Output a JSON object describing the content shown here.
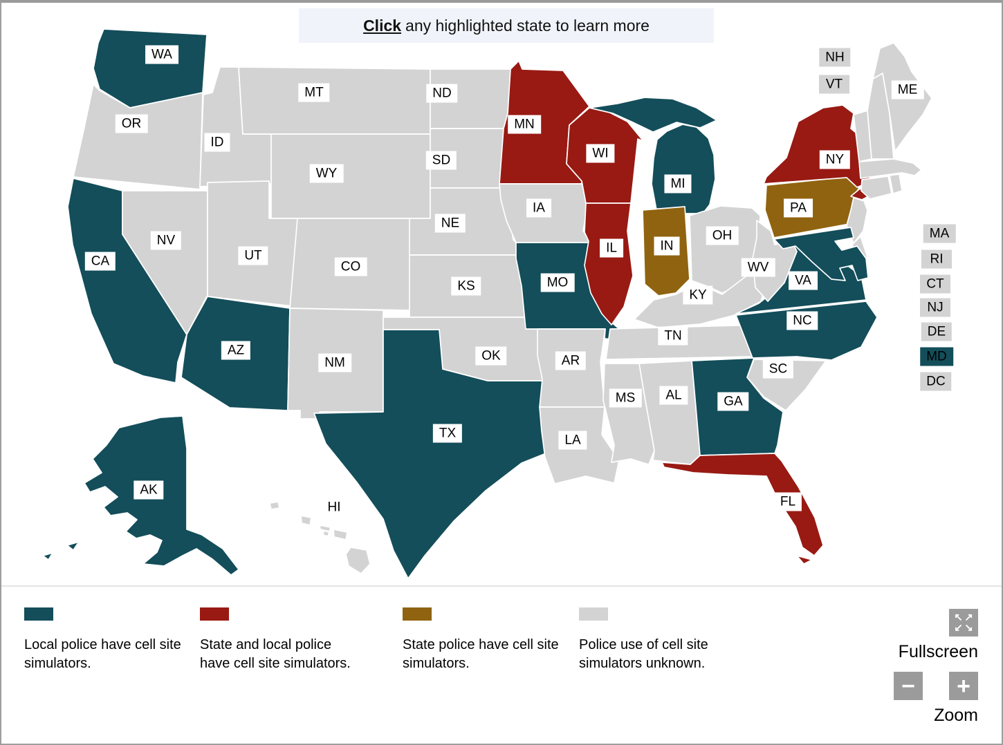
{
  "header": {
    "click_word": "Click",
    "instruction_rest": "any highlighted state to learn more"
  },
  "map": {
    "categories": {
      "local": {
        "color": "#134E5A",
        "label": "Local police have cell site simulators."
      },
      "state_local": {
        "color": "#981A13",
        "label": "State and local police have cell site simulators."
      },
      "state": {
        "color": "#906310",
        "label": "State police have cell site simulators."
      },
      "unknown": {
        "color": "#D3D3D3",
        "label": "Police use of cell site simulators unknown."
      }
    },
    "states": [
      {
        "id": "WA",
        "label": "WA",
        "category": "local"
      },
      {
        "id": "OR",
        "label": "OR",
        "category": "unknown"
      },
      {
        "id": "CA",
        "label": "CA",
        "category": "local"
      },
      {
        "id": "ID",
        "label": "ID",
        "category": "unknown"
      },
      {
        "id": "NV",
        "label": "NV",
        "category": "unknown"
      },
      {
        "id": "MT",
        "label": "MT",
        "category": "unknown"
      },
      {
        "id": "WY",
        "label": "WY",
        "category": "unknown"
      },
      {
        "id": "UT",
        "label": "UT",
        "category": "unknown"
      },
      {
        "id": "CO",
        "label": "CO",
        "category": "unknown"
      },
      {
        "id": "AZ",
        "label": "AZ",
        "category": "local"
      },
      {
        "id": "NM",
        "label": "NM",
        "category": "unknown"
      },
      {
        "id": "ND",
        "label": "ND",
        "category": "unknown"
      },
      {
        "id": "SD",
        "label": "SD",
        "category": "unknown"
      },
      {
        "id": "NE",
        "label": "NE",
        "category": "unknown"
      },
      {
        "id": "KS",
        "label": "KS",
        "category": "unknown"
      },
      {
        "id": "OK",
        "label": "OK",
        "category": "unknown"
      },
      {
        "id": "TX",
        "label": "TX",
        "category": "local"
      },
      {
        "id": "MN",
        "label": "MN",
        "category": "state_local"
      },
      {
        "id": "IA",
        "label": "IA",
        "category": "unknown"
      },
      {
        "id": "MO",
        "label": "MO",
        "category": "local"
      },
      {
        "id": "AR",
        "label": "AR",
        "category": "unknown"
      },
      {
        "id": "LA",
        "label": "LA",
        "category": "unknown"
      },
      {
        "id": "WI",
        "label": "WI",
        "category": "state_local"
      },
      {
        "id": "IL",
        "label": "IL",
        "category": "state_local"
      },
      {
        "id": "MI",
        "label": "MI",
        "category": "local"
      },
      {
        "id": "IN",
        "label": "IN",
        "category": "state"
      },
      {
        "id": "OH",
        "label": "OH",
        "category": "unknown"
      },
      {
        "id": "KY",
        "label": "KY",
        "category": "unknown"
      },
      {
        "id": "TN",
        "label": "TN",
        "category": "unknown"
      },
      {
        "id": "MS",
        "label": "MS",
        "category": "unknown"
      },
      {
        "id": "AL",
        "label": "AL",
        "category": "unknown"
      },
      {
        "id": "GA",
        "label": "GA",
        "category": "local"
      },
      {
        "id": "FL",
        "label": "FL",
        "category": "state_local"
      },
      {
        "id": "SC",
        "label": "SC",
        "category": "unknown"
      },
      {
        "id": "NC",
        "label": "NC",
        "category": "local"
      },
      {
        "id": "VA",
        "label": "VA",
        "category": "local"
      },
      {
        "id": "WV",
        "label": "WV",
        "category": "unknown"
      },
      {
        "id": "PA",
        "label": "PA",
        "category": "state"
      },
      {
        "id": "NY",
        "label": "NY",
        "category": "state_local"
      },
      {
        "id": "VT",
        "label": "VT",
        "category": "unknown"
      },
      {
        "id": "NH",
        "label": "NH",
        "category": "unknown"
      },
      {
        "id": "ME",
        "label": "ME",
        "category": "unknown"
      },
      {
        "id": "MA",
        "label": "MA",
        "category": "unknown"
      },
      {
        "id": "RI",
        "label": "RI",
        "category": "unknown"
      },
      {
        "id": "CT",
        "label": "CT",
        "category": "unknown"
      },
      {
        "id": "NJ",
        "label": "NJ",
        "category": "unknown"
      },
      {
        "id": "DE",
        "label": "DE",
        "category": "unknown"
      },
      {
        "id": "MD",
        "label": "MD",
        "category": "local"
      },
      {
        "id": "DC",
        "label": "DC",
        "category": "unknown"
      },
      {
        "id": "AK",
        "label": "AK",
        "category": "local"
      },
      {
        "id": "HI",
        "label": "HI",
        "category": "unknown"
      }
    ]
  },
  "legend": {
    "order": [
      "local",
      "state_local",
      "state",
      "unknown"
    ]
  },
  "controls": {
    "fullscreen_label": "Fullscreen",
    "zoom_label": "Zoom",
    "zoom_out_glyph": "−",
    "zoom_in_glyph": "+",
    "fullscreen_arrows": [
      "↖",
      "↗",
      "↙",
      "↘"
    ]
  }
}
